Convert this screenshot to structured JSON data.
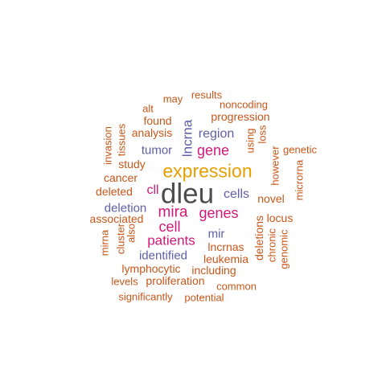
{
  "colors": {
    "dark": "#4d4d4d",
    "orange": "#e69f00",
    "magenta": "#d1187a",
    "blue": "#5e5ea8",
    "rust": "#c8561a"
  },
  "words": [
    {
      "text": "dleu",
      "color": "dark"
    },
    {
      "text": "expression",
      "color": "orange"
    },
    {
      "text": "mira",
      "color": "magenta"
    },
    {
      "text": "genes",
      "color": "magenta"
    },
    {
      "text": "cell",
      "color": "magenta"
    },
    {
      "text": "patients",
      "color": "magenta"
    },
    {
      "text": "gene",
      "color": "magenta"
    },
    {
      "text": "lncrna",
      "color": "blue"
    },
    {
      "text": "cll",
      "color": "magenta"
    },
    {
      "text": "cells",
      "color": "blue"
    },
    {
      "text": "region",
      "color": "blue"
    },
    {
      "text": "tumor",
      "color": "blue"
    },
    {
      "text": "deletion",
      "color": "blue"
    },
    {
      "text": "mir",
      "color": "blue"
    },
    {
      "text": "identified",
      "color": "blue"
    },
    {
      "text": "lncrnas",
      "color": "rust"
    },
    {
      "text": "leukemia",
      "color": "rust"
    },
    {
      "text": "deletions",
      "color": "rust"
    },
    {
      "text": "analysis",
      "color": "rust"
    },
    {
      "text": "study",
      "color": "rust"
    },
    {
      "text": "cancer",
      "color": "rust"
    },
    {
      "text": "deleted",
      "color": "rust"
    },
    {
      "text": "associated",
      "color": "rust"
    },
    {
      "text": "novel",
      "color": "rust"
    },
    {
      "text": "locus",
      "color": "rust"
    },
    {
      "text": "lymphocytic",
      "color": "rust"
    },
    {
      "text": "including",
      "color": "rust"
    },
    {
      "text": "proliferation",
      "color": "rust"
    },
    {
      "text": "levels",
      "color": "rust"
    },
    {
      "text": "common",
      "color": "rust"
    },
    {
      "text": "significantly",
      "color": "rust"
    },
    {
      "text": "potential",
      "color": "rust"
    },
    {
      "text": "progression",
      "color": "rust"
    },
    {
      "text": "noncoding",
      "color": "rust"
    },
    {
      "text": "results",
      "color": "rust"
    },
    {
      "text": "may",
      "color": "rust"
    },
    {
      "text": "alt",
      "color": "rust"
    },
    {
      "text": "found",
      "color": "rust"
    },
    {
      "text": "genetic",
      "color": "rust"
    },
    {
      "text": "however",
      "color": "rust"
    },
    {
      "text": "microrna",
      "color": "rust"
    },
    {
      "text": "using",
      "color": "rust"
    },
    {
      "text": "loss",
      "color": "rust"
    },
    {
      "text": "invasion",
      "color": "rust"
    },
    {
      "text": "tissues",
      "color": "rust"
    },
    {
      "text": "cluster",
      "color": "rust"
    },
    {
      "text": "also",
      "color": "rust"
    },
    {
      "text": "mirna",
      "color": "rust"
    },
    {
      "text": "chronic",
      "color": "rust"
    },
    {
      "text": "genomic",
      "color": "rust"
    }
  ]
}
